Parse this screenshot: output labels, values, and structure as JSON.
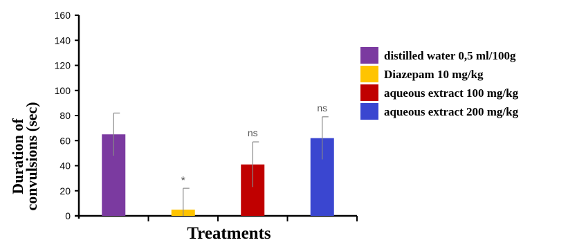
{
  "chart_data": {
    "type": "bar",
    "xlabel": "Treatments",
    "ylabel": "Duration of convulsions (sec)",
    "ylabel_lines": [
      "Duration of",
      "convulsions (sec)"
    ],
    "ylim": [
      0,
      160
    ],
    "yticks": [
      0,
      20,
      40,
      60,
      80,
      100,
      120,
      140,
      160
    ],
    "grid": false,
    "legend_position": "right",
    "categories": [
      "distilled water 0,5 ml/100g",
      "Diazepam 10 mg/kg",
      "aqueous extract 100 mg/kg",
      "aqueous extract 200 mg/kg"
    ],
    "values": [
      65,
      5,
      41,
      62
    ],
    "errors": [
      17,
      17,
      18,
      17
    ],
    "annotations": [
      "",
      "*",
      "ns",
      "ns"
    ],
    "colors": [
      "#7b3aa0",
      "#ffc400",
      "#c00000",
      "#3a46d0"
    ]
  }
}
